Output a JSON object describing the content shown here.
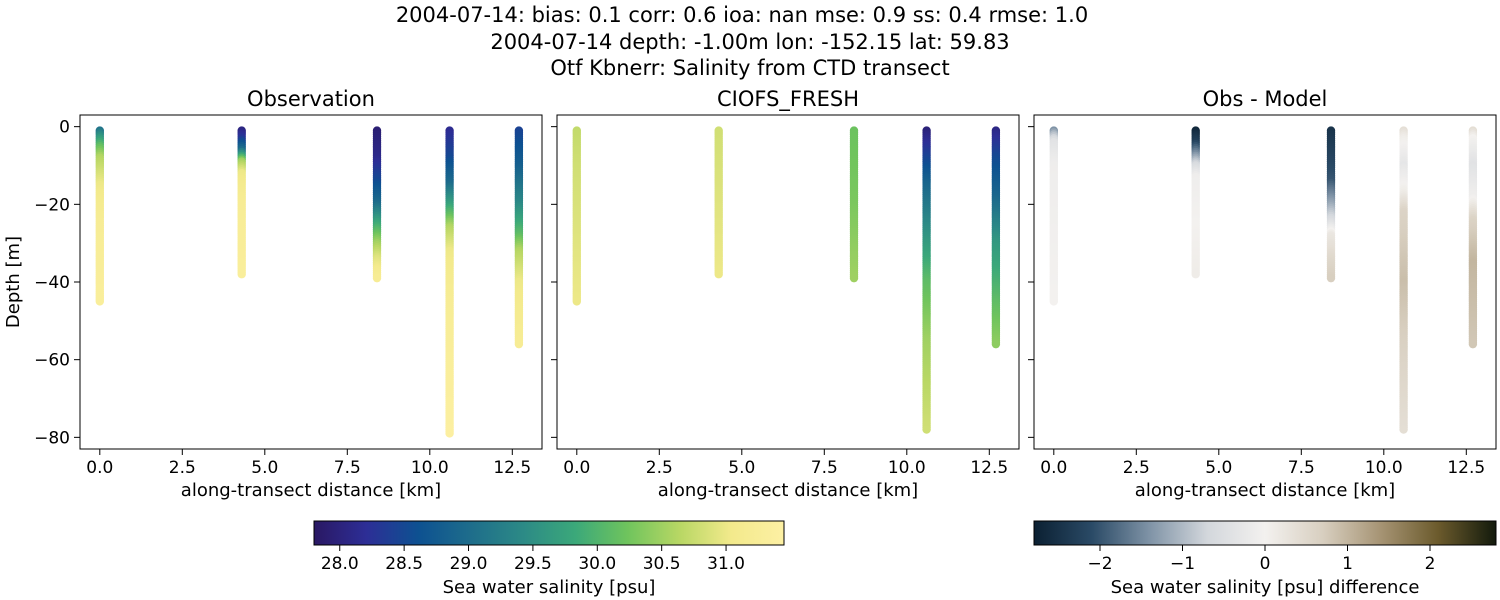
{
  "header": {
    "line1": "2004-07-14: bias: 0.1  corr: 0.6  ioa: nan  mse: 0.9  ss: 0.4  rmse: 1.0",
    "line2": "2004-07-14 depth: -1.00m lon: -152.15 lat: 59.83",
    "line3": "Otf Kbnerr: Salinity from CTD transect"
  },
  "chart_data": [
    {
      "type": "scatter",
      "title": "Observation",
      "xlabel": "along-transect distance [km]",
      "ylabel": "Depth [m]",
      "xlim": [
        -0.6,
        13.4
      ],
      "ylim": [
        -83,
        3
      ],
      "xticks": [
        "0.0",
        "2.5",
        "5.0",
        "7.5",
        "10.0",
        "12.5"
      ],
      "yticks": [
        "0",
        "−20",
        "−40",
        "−60",
        "−80"
      ],
      "colorbar": "salinity",
      "profiles": [
        {
          "x": 0.0,
          "depth_min": -1,
          "depth_max": -45,
          "stops": [
            [
              0,
              28.8
            ],
            [
              2,
              29.4
            ],
            [
              5,
              30.1
            ],
            [
              8,
              30.6
            ],
            [
              15,
              31.0
            ],
            [
              25,
              31.2
            ],
            [
              45,
              31.3
            ]
          ]
        },
        {
          "x": 4.3,
          "depth_min": -1,
          "depth_max": -38,
          "stops": [
            [
              0,
              27.9
            ],
            [
              3,
              28.3
            ],
            [
              6,
              29.0
            ],
            [
              9,
              30.5
            ],
            [
              12,
              31.0
            ],
            [
              20,
              31.2
            ],
            [
              38,
              31.3
            ]
          ]
        },
        {
          "x": 8.4,
          "depth_min": -1,
          "depth_max": -39,
          "stops": [
            [
              0,
              27.9
            ],
            [
              8,
              28.1
            ],
            [
              14,
              28.5
            ],
            [
              20,
              29.0
            ],
            [
              25,
              29.8
            ],
            [
              30,
              30.5
            ],
            [
              34,
              30.9
            ],
            [
              39,
              31.2
            ]
          ]
        },
        {
          "x": 10.6,
          "depth_min": -1,
          "depth_max": -79,
          "stops": [
            [
              0,
              28.1
            ],
            [
              8,
              28.5
            ],
            [
              15,
              29.0
            ],
            [
              20,
              29.7
            ],
            [
              26,
              30.6
            ],
            [
              32,
              31.0
            ],
            [
              45,
              31.2
            ],
            [
              79,
              31.4
            ]
          ]
        },
        {
          "x": 12.7,
          "depth_min": -1,
          "depth_max": -56,
          "stops": [
            [
              0,
              28.4
            ],
            [
              10,
              28.8
            ],
            [
              20,
              29.4
            ],
            [
              28,
              30.1
            ],
            [
              32,
              30.6
            ],
            [
              40,
              31.0
            ],
            [
              56,
              31.2
            ]
          ]
        }
      ]
    },
    {
      "type": "scatter",
      "title": "CIOFS_FRESH",
      "xlabel": "along-transect distance [km]",
      "ylabel": "",
      "xlim": [
        -0.6,
        13.4
      ],
      "ylim": [
        -83,
        3
      ],
      "xticks": [
        "0.0",
        "2.5",
        "5.0",
        "7.5",
        "10.0",
        "12.5"
      ],
      "yticks": [],
      "colorbar": "salinity",
      "profiles": [
        {
          "x": 0.0,
          "depth_min": -1,
          "depth_max": -45,
          "stops": [
            [
              0,
              30.7
            ],
            [
              10,
              30.8
            ],
            [
              45,
              31.0
            ]
          ]
        },
        {
          "x": 4.3,
          "depth_min": -1,
          "depth_max": -38,
          "stops": [
            [
              0,
              30.8
            ],
            [
              38,
              31.0
            ]
          ]
        },
        {
          "x": 8.4,
          "depth_min": -1,
          "depth_max": -39,
          "stops": [
            [
              0,
              30.2
            ],
            [
              20,
              30.3
            ],
            [
              39,
              30.5
            ]
          ]
        },
        {
          "x": 10.6,
          "depth_min": -1,
          "depth_max": -78,
          "stops": [
            [
              0,
              27.9
            ],
            [
              6,
              28.3
            ],
            [
              15,
              28.9
            ],
            [
              25,
              29.4
            ],
            [
              40,
              30.1
            ],
            [
              55,
              30.5
            ],
            [
              78,
              30.8
            ]
          ]
        },
        {
          "x": 12.7,
          "depth_min": -1,
          "depth_max": -56,
          "stops": [
            [
              0,
              28.0
            ],
            [
              8,
              28.5
            ],
            [
              18,
              28.9
            ],
            [
              30,
              29.6
            ],
            [
              45,
              30.1
            ],
            [
              56,
              30.4
            ]
          ]
        }
      ]
    },
    {
      "type": "scatter",
      "title": "Obs - Model",
      "xlabel": "along-transect distance [km]",
      "ylabel": "",
      "xlim": [
        -0.6,
        13.4
      ],
      "ylim": [
        -83,
        3
      ],
      "xticks": [
        "0.0",
        "2.5",
        "5.0",
        "7.5",
        "10.0",
        "12.5"
      ],
      "yticks": [],
      "colorbar": "difference",
      "profiles": [
        {
          "x": 0.0,
          "depth_min": -1,
          "depth_max": -45,
          "stops": [
            [
              0,
              -1.8
            ],
            [
              2,
              -1.0
            ],
            [
              4,
              -0.4
            ],
            [
              10,
              -0.1
            ],
            [
              45,
              0.0
            ]
          ]
        },
        {
          "x": 4.3,
          "depth_min": -1,
          "depth_max": -38,
          "stops": [
            [
              0,
              -2.8
            ],
            [
              4,
              -2.3
            ],
            [
              7,
              -1.5
            ],
            [
              10,
              -0.6
            ],
            [
              13,
              -0.1
            ],
            [
              38,
              0.1
            ]
          ]
        },
        {
          "x": 8.4,
          "depth_min": -1,
          "depth_max": -39,
          "stops": [
            [
              0,
              -2.5
            ],
            [
              14,
              -2.0
            ],
            [
              20,
              -1.2
            ],
            [
              24,
              -0.6
            ],
            [
              28,
              0.2
            ],
            [
              34,
              0.5
            ],
            [
              39,
              0.7
            ]
          ]
        },
        {
          "x": 10.6,
          "depth_min": -1,
          "depth_max": -78,
          "stops": [
            [
              0,
              0.5
            ],
            [
              3,
              0.1
            ],
            [
              10,
              -0.3
            ],
            [
              17,
              0.1
            ],
            [
              22,
              0.6
            ],
            [
              40,
              0.9
            ],
            [
              60,
              0.6
            ],
            [
              78,
              0.4
            ]
          ]
        },
        {
          "x": 12.7,
          "depth_min": -1,
          "depth_max": -56,
          "stops": [
            [
              0,
              0.6
            ],
            [
              3,
              0.0
            ],
            [
              10,
              -0.4
            ],
            [
              18,
              -0.1
            ],
            [
              24,
              0.6
            ],
            [
              35,
              1.0
            ],
            [
              56,
              0.8
            ]
          ]
        }
      ]
    }
  ],
  "colorbars": {
    "salinity": {
      "label": "Sea water salinity [psu]",
      "colormap": "haline",
      "range": [
        27.8,
        31.45
      ],
      "tick_values": [
        28.0,
        28.5,
        29.0,
        29.5,
        30.0,
        30.5,
        31.0
      ],
      "tick_labels": [
        "28.0",
        "28.5",
        "29.0",
        "29.5",
        "30.0",
        "30.5",
        "31.0"
      ],
      "colors": [
        "#2a1863",
        "#2d2e96",
        "#0d5191",
        "#1e6d8b",
        "#2c8a86",
        "#3ba87a",
        "#6fc45d",
        "#b8d764",
        "#f3ea8c",
        "#fdf0a4"
      ]
    },
    "difference": {
      "label": "Sea water salinity [psu] difference",
      "colormap": "diff",
      "range": [
        -2.8,
        2.8
      ],
      "tick_values": [
        -2,
        -1,
        0,
        1,
        2
      ],
      "tick_labels": [
        "−2",
        "−1",
        "0",
        "1",
        "2"
      ],
      "colors": [
        "#0b2032",
        "#2a4a66",
        "#7f93a6",
        "#d3d7dc",
        "#f3f1ef",
        "#d8cfc0",
        "#a69474",
        "#6b5a2c",
        "#121a0c"
      ]
    }
  }
}
